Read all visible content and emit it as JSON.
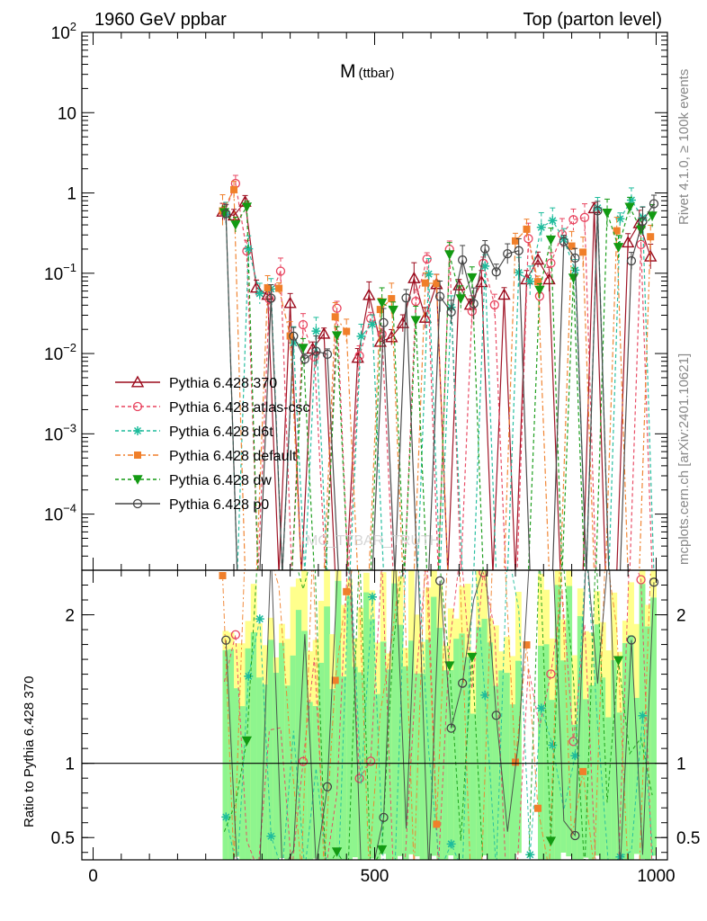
{
  "header": {
    "left": "1960 GeV ppbar",
    "right": "Top (parton level)",
    "plot_title": "M",
    "plot_title_sub": "(ttbar)"
  },
  "side_labels": {
    "rivet": "Rivet 4.1.0, ≥ 100k events",
    "mcplots": "mcplots.cern.ch [arXiv:2401.10621]"
  },
  "watermark": "MC_TTBAR_TRUTH",
  "ratio_ylabel": "Ratio to Pythia 6.428 370",
  "colors": {
    "370": "#9b0a1c",
    "atlas-csc": "#e8445f",
    "d6t": "#1ebc9c",
    "default": "#f07f2a",
    "dw": "#139a13",
    "p0": "#444444",
    "band_green": "#8ef58e",
    "band_yellow": "#ffff8c"
  },
  "chart_data": {
    "type": "line",
    "title": "M (ttbar)",
    "xlabel": "",
    "ylabel": "",
    "xlim": [
      -20,
      1020
    ],
    "ylim": [
      2e-05,
      100
    ],
    "yscale": "log",
    "x_ticks": [
      {
        "value": 0,
        "label": "0"
      },
      {
        "value": 500,
        "label": "500"
      },
      {
        "value": 1000,
        "label": "1000"
      }
    ],
    "y_ticks": [
      {
        "value": 100,
        "label": "10",
        "sup": "2"
      },
      {
        "value": 10,
        "label": "10",
        "sup": ""
      },
      {
        "value": 1,
        "label": "1",
        "sup": ""
      },
      {
        "value": 0.1,
        "label": "10",
        "sup": "−1"
      },
      {
        "value": 0.01,
        "label": "10",
        "sup": "−2"
      },
      {
        "value": 0.001,
        "label": "10",
        "sup": "−3"
      },
      {
        "value": 0.0001,
        "label": "10",
        "sup": "−4"
      }
    ],
    "ratio_ylim": [
      0.35,
      2.3
    ],
    "ratio_ticks": [
      {
        "value": 0.5,
        "label": "0.5"
      },
      {
        "value": 1,
        "label": "1"
      },
      {
        "value": 2,
        "label": "2"
      }
    ],
    "series": [
      {
        "key": "370",
        "name": "Pythia 6.428 370",
        "marker": "triangle",
        "dash": "",
        "seed": 11
      },
      {
        "key": "atlas-csc",
        "name": "Pythia 6.428 atlas-csc",
        "marker": "circle-open",
        "dash": "4,3",
        "seed": 23
      },
      {
        "key": "d6t",
        "name": "Pythia 6.428 d6t",
        "marker": "star",
        "dash": "4,3",
        "seed": 37
      },
      {
        "key": "default",
        "name": "Pythia 6.428 default",
        "marker": "square",
        "dash": "6,3,2,3",
        "seed": 41
      },
      {
        "key": "dw",
        "name": "Pythia 6.428 dw",
        "marker": "triangle-down",
        "dash": "4,3",
        "seed": 53
      },
      {
        "key": "p0",
        "name": "Pythia 6.428 p0",
        "marker": "circle-open",
        "dash": "",
        "seed": 67
      }
    ],
    "trend_points": [
      {
        "x": 230,
        "y": 1.0
      },
      {
        "x": 260,
        "y": 0.6
      },
      {
        "x": 290,
        "y": 0.15
      },
      {
        "x": 330,
        "y": 0.05
      },
      {
        "x": 370,
        "y": 0.02
      },
      {
        "x": 410,
        "y": 0.01
      },
      {
        "x": 460,
        "y": 0.02
      },
      {
        "x": 520,
        "y": 0.04
      },
      {
        "x": 600,
        "y": 0.06
      },
      {
        "x": 700,
        "y": 0.1
      },
      {
        "x": 800,
        "y": 0.15
      },
      {
        "x": 900,
        "y": 0.25
      },
      {
        "x": 1000,
        "y": 0.45
      }
    ],
    "x_start": 230,
    "x_end": 1000,
    "bin_width": 10
  }
}
